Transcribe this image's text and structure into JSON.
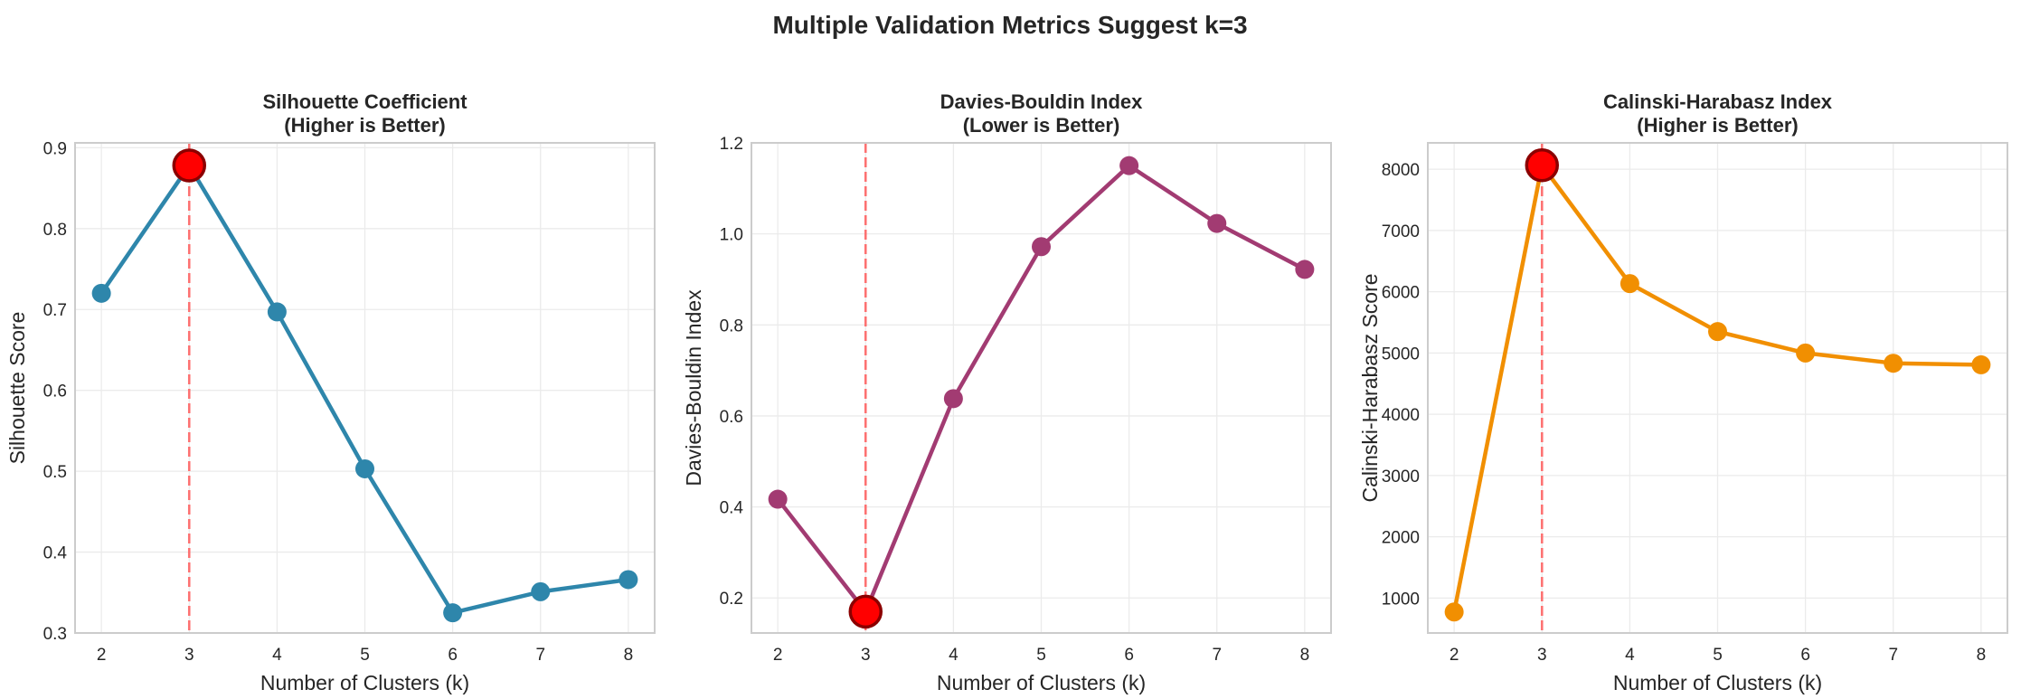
{
  "chart_data": {
    "suptitle": "Multiple Validation Metrics Suggest k=3",
    "optimal_k": 3,
    "highlight": {
      "marker_fill": "#ff0000",
      "marker_edge": "#8b0000",
      "vline_color": "#ff5c5c"
    },
    "charts": [
      {
        "type": "line",
        "title_line1": "Silhouette Coefficient",
        "title_line2": "(Higher is Better)",
        "xlabel": "Number of Clusters (k)",
        "ylabel": "Silhouette Score",
        "x": [
          2,
          3,
          4,
          5,
          6,
          7,
          8
        ],
        "values": [
          0.72,
          0.878,
          0.697,
          0.503,
          0.325,
          0.351,
          0.366
        ],
        "color": "#2e86ab",
        "xlim": [
          1.7,
          8.3
        ],
        "ylim": [
          0.3,
          0.906
        ],
        "yticks": [
          0.3,
          0.4,
          0.5,
          0.6,
          0.7,
          0.8,
          0.9
        ],
        "ytick_labels": [
          "0.3",
          "0.4",
          "0.5",
          "0.6",
          "0.7",
          "0.8",
          "0.9"
        ],
        "xticks": [
          2,
          3,
          4,
          5,
          6,
          7,
          8
        ],
        "xtick_labels": [
          "2",
          "3",
          "4",
          "5",
          "6",
          "7",
          "8"
        ],
        "best_index": 1,
        "grid": true
      },
      {
        "type": "line",
        "title_line1": "Davies-Bouldin Index",
        "title_line2": "(Lower is Better)",
        "xlabel": "Number of Clusters (k)",
        "ylabel": "Davies-Bouldin Index",
        "x": [
          2,
          3,
          4,
          5,
          6,
          7,
          8
        ],
        "values": [
          0.417,
          0.17,
          0.638,
          0.972,
          1.15,
          1.023,
          0.922
        ],
        "color": "#a23b72",
        "xlim": [
          1.7,
          8.3
        ],
        "ylim": [
          0.123,
          1.2
        ],
        "yticks": [
          0.2,
          0.4,
          0.6,
          0.8,
          1.0,
          1.2
        ],
        "ytick_labels": [
          "0.2",
          "0.4",
          "0.6",
          "0.8",
          "1.0",
          "1.2"
        ],
        "xticks": [
          2,
          3,
          4,
          5,
          6,
          7,
          8
        ],
        "xtick_labels": [
          "2",
          "3",
          "4",
          "5",
          "6",
          "7",
          "8"
        ],
        "best_index": 1,
        "grid": true
      },
      {
        "type": "line",
        "title_line1": "Calinski-Harabasz Index",
        "title_line2": "(Higher is Better)",
        "xlabel": "Number of Clusters (k)",
        "ylabel": "Calinski-Harabasz Score",
        "x": [
          2,
          3,
          4,
          5,
          6,
          7,
          8
        ],
        "values": [
          773,
          8065,
          6133,
          5350,
          5000,
          4833,
          4808
        ],
        "color": "#f18f01",
        "xlim": [
          1.7,
          8.3
        ],
        "ylim": [
          430,
          8430
        ],
        "yticks": [
          1000,
          2000,
          3000,
          4000,
          5000,
          6000,
          7000,
          8000
        ],
        "ytick_labels": [
          "1000",
          "2000",
          "3000",
          "4000",
          "5000",
          "6000",
          "7000",
          "8000"
        ],
        "xticks": [
          2,
          3,
          4,
          5,
          6,
          7,
          8
        ],
        "xtick_labels": [
          "2",
          "3",
          "4",
          "5",
          "6",
          "7",
          "8"
        ],
        "best_index": 1,
        "grid": true
      }
    ]
  }
}
